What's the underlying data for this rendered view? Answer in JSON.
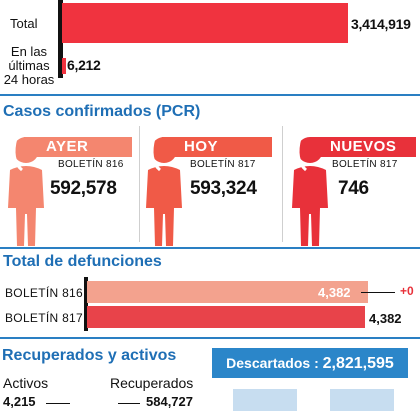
{
  "total": {
    "label": "Total",
    "value": "3,414,919"
  },
  "last24": {
    "label_lines": [
      "En las",
      "últimas",
      "24 horas"
    ],
    "value": "6,212"
  },
  "pcr": {
    "title": "Casos confirmados (PCR)",
    "cards": [
      {
        "tag": "AYER",
        "boletin": "BOLETÍN 816",
        "value": "592,578",
        "color": "#f4866f"
      },
      {
        "tag": "HOY",
        "boletin": "BOLETÍN 817",
        "value": "593,324",
        "color": "#f05a47"
      },
      {
        "tag": "NUEVOS",
        "boletin": "BOLETÍN 817",
        "value": "746",
        "color": "#e8313a"
      }
    ]
  },
  "deaths": {
    "title": "Total de defunciones",
    "rows": [
      {
        "label": "BOLETÍN 816",
        "value": "4,382"
      },
      {
        "label": "BOLETÍN 817",
        "value": "4,382"
      }
    ],
    "delta": "+0"
  },
  "recovered": {
    "title": "Recuperados y activos",
    "activos_label": "Activos",
    "activos_value": "4,215",
    "recuperados_label": "Recuperados",
    "recuperados_value": "584,727"
  },
  "descartados": {
    "label": "Descartados :",
    "value": "2,821,595"
  },
  "colors": {
    "accent": "#2a7fc3",
    "red": "#f0333f"
  }
}
